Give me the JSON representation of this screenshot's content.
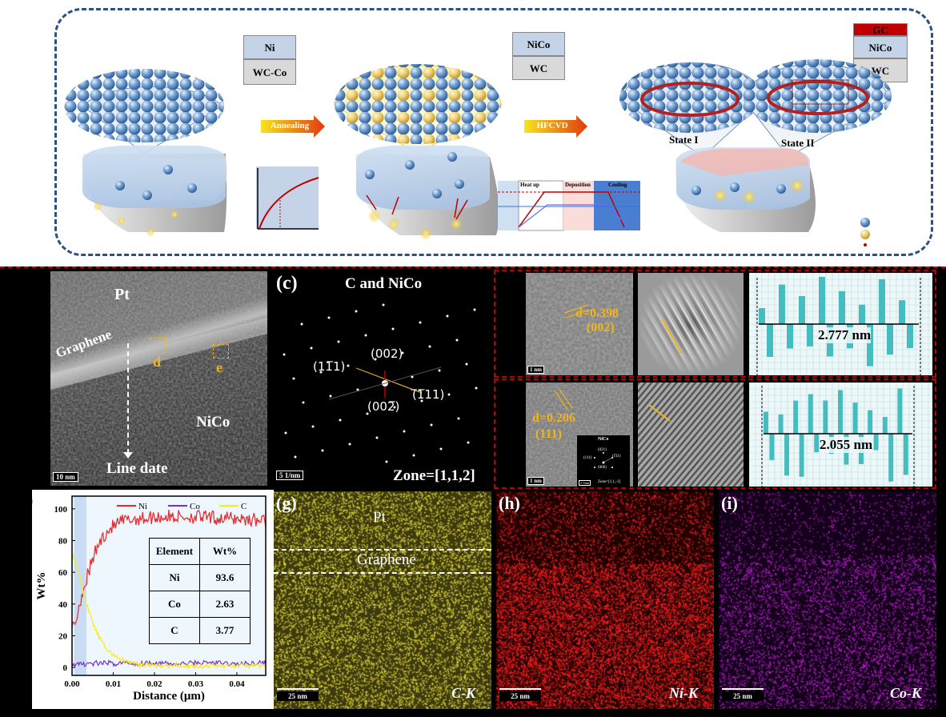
{
  "schematic": {
    "stack1": [
      "Ni",
      "WC-Co"
    ],
    "stack2": [
      "NiCo",
      "WC"
    ],
    "stack3": [
      "GC",
      "NiCo",
      "WC"
    ],
    "arrow1": "Annealing",
    "arrow2": "HFCVD",
    "state1": "State I",
    "state2": "State II",
    "profile_labels": [
      "Heat up",
      "Deposition",
      "Cooling"
    ],
    "colors": {
      "frame": "#2b4f86",
      "ball": "#4f7fb8",
      "ni_box": "#c5d3e8",
      "wc_box": "#d9d9d9",
      "gc_box": "#c00000",
      "arrow": "#e23a10"
    }
  },
  "panel_b": {
    "labels": {
      "pt": "Pt",
      "graphene": "Graphene",
      "d": "d",
      "e": "e",
      "nico": "NiCo",
      "line": "Line date"
    },
    "scale": "10 nm"
  },
  "panel_c": {
    "letter": "(c)",
    "title": "C and NiCo",
    "spots": {
      "s1": "(002)",
      "s2": "(11̅1)",
      "s3": "(̅1̅11)",
      "s4": "(002̅)"
    },
    "scale": "5 1/nm",
    "zone": "Zone=[1,1,2]"
  },
  "panel_d": {
    "d_label": "d=0.398",
    "plane": "(002)",
    "scale": "1 nm",
    "distance": "2.777 nm"
  },
  "panel_e": {
    "d_label": "d=0.206",
    "plane": "(111)",
    "scale": "1 nm",
    "distance": "2.055 nm",
    "inset": {
      "title": "NiCo",
      "zone": "Zone=[1,1,-1]",
      "spot_a": "(021)",
      "spot_b": "(111)",
      "spot_c": "(1̅11)",
      "spot_d": "(000)",
      "scale": "2 1/nm"
    }
  },
  "panel_f": {
    "letter": ")",
    "table": {
      "headers": [
        "Element",
        "Wt%"
      ],
      "rows": [
        [
          "Ni",
          "93.6"
        ],
        [
          "Co",
          "2.63"
        ],
        [
          "C",
          "3.77"
        ]
      ]
    }
  },
  "chart_data": {
    "type": "line",
    "xlabel": "Distance (μm)",
    "ylabel": "Wt%",
    "xlim": [
      0,
      0.047
    ],
    "ylim": [
      -5,
      108
    ],
    "xticks": [
      "0.00",
      "0.01",
      "0.02",
      "0.03",
      "0.04"
    ],
    "yticks": [
      "0",
      "20",
      "40",
      "60",
      "80",
      "100"
    ],
    "legend_position": "top",
    "x": [
      0.0,
      0.001,
      0.002,
      0.003,
      0.004,
      0.005,
      0.006,
      0.007,
      0.008,
      0.009,
      0.01,
      0.012,
      0.014,
      0.016,
      0.018,
      0.02,
      0.025,
      0.03,
      0.035,
      0.04,
      0.045,
      0.047
    ],
    "series": [
      {
        "name": "Ni",
        "color": "#e8272a",
        "values": [
          25,
          30,
          42,
          52,
          60,
          68,
          75,
          80,
          84,
          87,
          89,
          92,
          93,
          94,
          94,
          95,
          95,
          95,
          94,
          94,
          93,
          92
        ]
      },
      {
        "name": "Co",
        "color": "#7a2fc7",
        "values": [
          2,
          2,
          2,
          2,
          3,
          2,
          3,
          2,
          3,
          3,
          2,
          3,
          3,
          2,
          3,
          3,
          2,
          3,
          3,
          2,
          3,
          3
        ]
      },
      {
        "name": "C",
        "color": "#f6ec1c",
        "values": [
          72,
          66,
          55,
          44,
          36,
          28,
          22,
          17,
          13,
          10,
          8,
          5,
          3,
          2,
          1.5,
          1,
          1,
          1,
          1,
          1,
          1,
          1
        ]
      }
    ]
  },
  "panel_g": {
    "letter": "(g)",
    "pt": "Pt",
    "graphene": "Graphene",
    "scale": "25 nm",
    "element": "C-K"
  },
  "panel_h": {
    "letter": "(h)",
    "scale": "25 nm",
    "element": "Ni-K"
  },
  "panel_i": {
    "letter": "(i)",
    "scale": "25 nm",
    "element": "Co-K"
  }
}
